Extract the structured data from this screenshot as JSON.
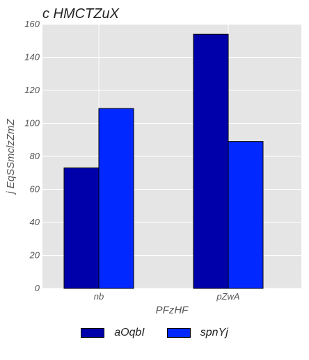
{
  "chart_data": {
    "type": "bar",
    "title": "c HMCTZuX",
    "xlabel": "PFzHF",
    "ylabel": "j EqSSmclzZmZ",
    "categories": [
      "nb",
      "pZwA"
    ],
    "series": [
      {
        "name": "aOqbI",
        "color": "#0000aa",
        "values": [
          73,
          154
        ]
      },
      {
        "name": "spnYj",
        "color": "#0028ff",
        "values": [
          109,
          89
        ]
      }
    ],
    "ylim": [
      0,
      160
    ],
    "yticks": [
      0,
      20,
      40,
      60,
      80,
      100,
      120,
      140,
      160
    ],
    "grid": true,
    "legend_position": "bottom-center"
  }
}
